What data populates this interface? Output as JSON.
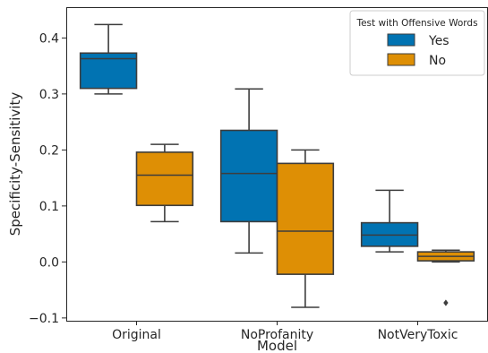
{
  "chart_data": {
    "type": "box",
    "xlabel": "Model",
    "ylabel": "Specificity-Sensitivity",
    "categories": [
      "Original",
      "NoProfanity",
      "NotVeryToxic"
    ],
    "ylim": [
      -0.105,
      0.455
    ],
    "yticks": [
      -0.1,
      0.0,
      0.1,
      0.2,
      0.3,
      0.4
    ],
    "ytick_labels": [
      "−0.1",
      "0.0",
      "0.1",
      "0.2",
      "0.3",
      "0.4"
    ],
    "grid": false,
    "legend": {
      "title": "Test with Offensive Words",
      "placement": "top-right",
      "entries": [
        {
          "label": "Yes",
          "color": "#0173b2"
        },
        {
          "label": "No",
          "color": "#de8f05"
        }
      ]
    },
    "series": [
      {
        "name": "Yes",
        "color": "#0173b2",
        "boxes": [
          {
            "category": "Original",
            "whisker_low": 0.3,
            "q1": 0.31,
            "median": 0.363,
            "q3": 0.373,
            "whisker_high": 0.424,
            "outliers": []
          },
          {
            "category": "NoProfanity",
            "whisker_low": 0.016,
            "q1": 0.072,
            "median": 0.158,
            "q3": 0.235,
            "whisker_high": 0.309,
            "outliers": []
          },
          {
            "category": "NotVeryToxic",
            "whisker_low": 0.018,
            "q1": 0.028,
            "median": 0.048,
            "q3": 0.07,
            "whisker_high": 0.128,
            "outliers": []
          }
        ]
      },
      {
        "name": "No",
        "color": "#de8f05",
        "boxes": [
          {
            "category": "Original",
            "whisker_low": 0.072,
            "q1": 0.101,
            "median": 0.155,
            "q3": 0.196,
            "whisker_high": 0.21,
            "outliers": []
          },
          {
            "category": "NoProfanity",
            "whisker_low": -0.081,
            "q1": -0.022,
            "median": 0.055,
            "q3": 0.176,
            "whisker_high": 0.2,
            "outliers": []
          },
          {
            "category": "NotVeryToxic",
            "whisker_low": 0.0,
            "q1": 0.002,
            "median": 0.01,
            "q3": 0.018,
            "whisker_high": 0.021,
            "outliers": [
              -0.073
            ]
          }
        ]
      }
    ]
  }
}
